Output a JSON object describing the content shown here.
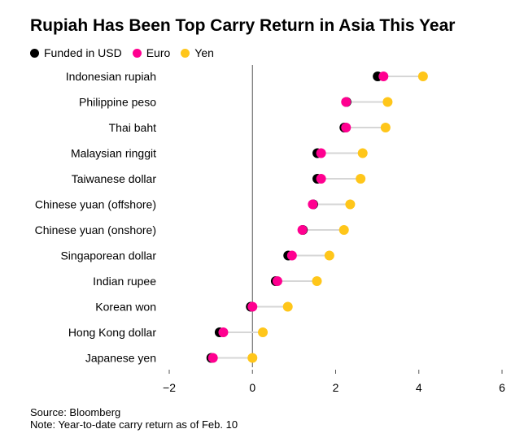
{
  "chart_data": {
    "type": "dot",
    "title": "Rupiah Has Been Top Carry Return in Asia This Year",
    "categories": [
      "Indonesian rupiah",
      "Philippine peso",
      "Thai baht",
      "Malaysian ringgit",
      "Taiwanese dollar",
      "Chinese yuan (offshore)",
      "Chinese yuan (onshore)",
      "Singaporean dollar",
      "Indian rupee",
      "Korean won",
      "Hong Kong dollar",
      "Japanese yen"
    ],
    "series": [
      {
        "name": "Funded in USD",
        "color": "#000000",
        "values": [
          3.05,
          2.3,
          2.25,
          1.6,
          1.6,
          1.5,
          1.25,
          0.9,
          0.6,
          0.0,
          -0.75,
          -0.95
        ]
      },
      {
        "name": "Euro",
        "color": "#ff0090",
        "values": [
          3.15,
          2.25,
          2.25,
          1.65,
          1.65,
          1.45,
          1.2,
          0.95,
          0.6,
          0.0,
          -0.7,
          -0.95
        ]
      },
      {
        "name": "Yen",
        "color": "#ffc61a",
        "values": [
          4.1,
          3.25,
          3.2,
          2.65,
          2.6,
          2.35,
          2.2,
          1.85,
          1.55,
          0.85,
          0.25,
          0.0
        ]
      }
    ],
    "xlim": [
      -2,
      6
    ],
    "xticks": [
      -2,
      0,
      2,
      4,
      6
    ],
    "legend_position": "top-left",
    "grid": false
  },
  "source_text": "Source: Bloomberg",
  "note_text": "Note: Year-to-date carry return as of Feb. 10"
}
